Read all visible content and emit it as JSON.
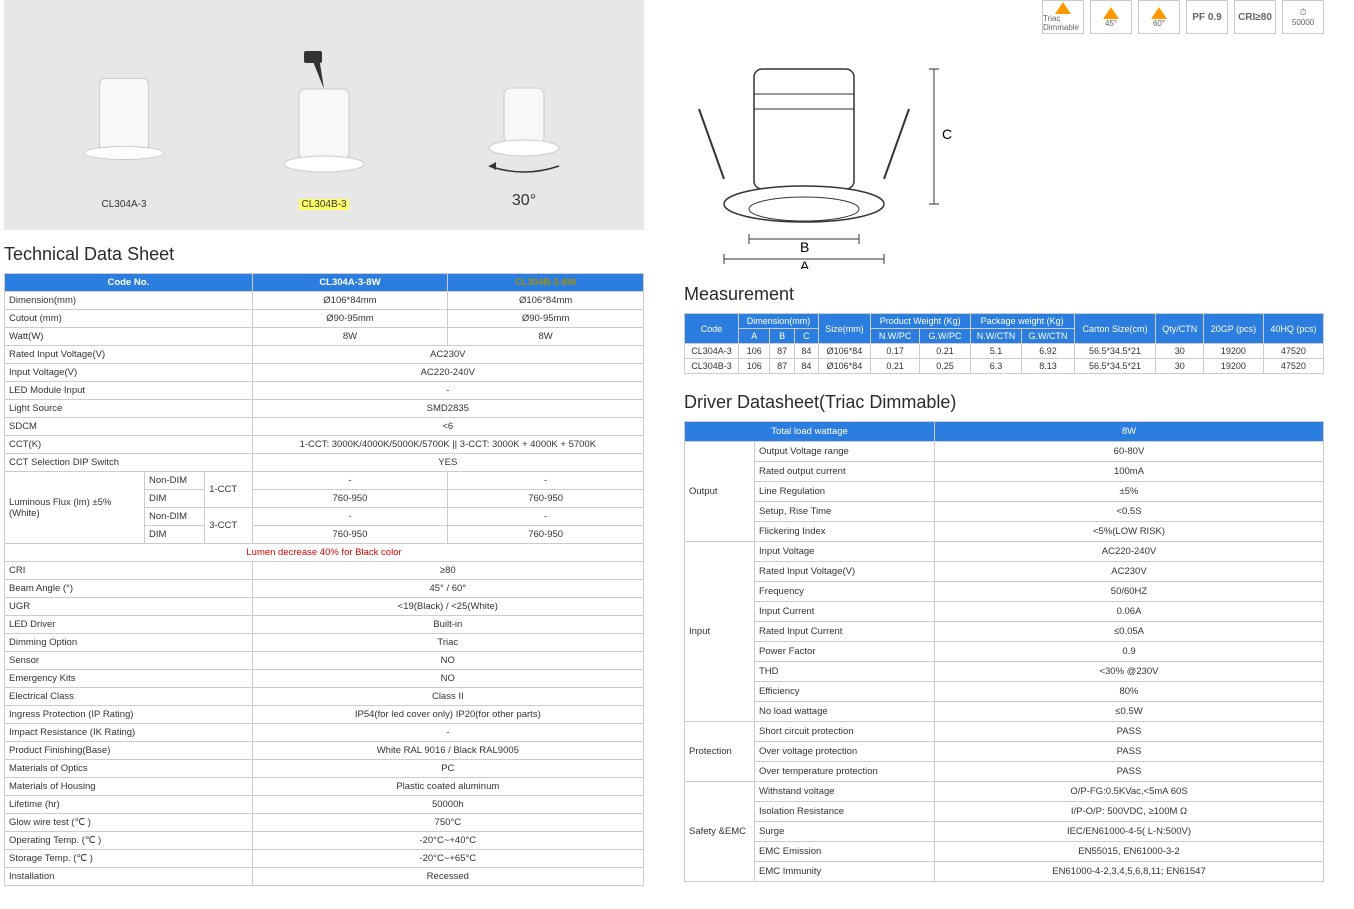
{
  "colors": {
    "header_blue": "#2b7de0",
    "highlight_yellow": "#ffff66",
    "red": "#d00",
    "border": "#cccccc",
    "gallery_bg": "#e7e7e7"
  },
  "gallery": {
    "items": [
      {
        "label": "CL304A-3",
        "highlight": false
      },
      {
        "label": "CL304B-3",
        "highlight": true
      }
    ],
    "tilt": "30°"
  },
  "badges": [
    {
      "text": "Triac Dimmable"
    },
    {
      "text": "45°"
    },
    {
      "text": "60°"
    },
    {
      "text": "PF 0.9"
    },
    {
      "text": "CRI≥80"
    },
    {
      "text": "50000"
    }
  ],
  "tech": {
    "title": "Technical Data Sheet",
    "headers": [
      "Code No.",
      "CL304A-3-8W",
      "CL304B-3-8W"
    ],
    "header_hl_index": 2,
    "rows_two": [
      {
        "label": "Dimension(mm)",
        "a": "Ø106*84mm",
        "b": "Ø106*84mm"
      },
      {
        "label": "Cutout (mm)",
        "a": "Ø90-95mm",
        "b": "Ø90-95mm"
      },
      {
        "label": "Watt(W)",
        "a": "8W",
        "b": "8W"
      }
    ],
    "rows_span": [
      {
        "label": "Rated Input Voltage(V)",
        "val": "AC230V"
      },
      {
        "label": "Input Voltage(V)",
        "val": "AC220-240V"
      },
      {
        "label": "LED Module Input",
        "val": "-"
      },
      {
        "label": "Light Source",
        "val": "SMD2835"
      },
      {
        "label": "SDCM",
        "val": "<6"
      },
      {
        "label": "CCT(K)",
        "val": "1-CCT: 3000K/4000K/5000K/5700K  ||  3-CCT: 3000K + 4000K + 5700K"
      },
      {
        "label": "CCT Selection DIP Switch",
        "val": "YES"
      }
    ],
    "flux": {
      "label": "Luminous Flux (lm) ±5% (White)",
      "groups": [
        {
          "sub": "Non-DIM",
          "cct": "1-CCT",
          "a": "-",
          "b": "-"
        },
        {
          "sub": "DIM",
          "cct": "",
          "a": "760-950",
          "b": "760-950"
        },
        {
          "sub": "Non-DIM",
          "cct": "3-CCT",
          "a": "-",
          "b": "-"
        },
        {
          "sub": "DIM",
          "cct": "",
          "a": "760-950",
          "b": "760-950"
        }
      ],
      "note": "Lumen decrease 40% for Black color"
    },
    "rows_span2": [
      {
        "label": "CRI",
        "val": "≥80"
      },
      {
        "label": "Beam Angle (°)",
        "val": "45° / 60°"
      },
      {
        "label": "UGR",
        "val": "<19(Black) / <25(White)"
      },
      {
        "label": "LED Driver",
        "val": "Built-in"
      },
      {
        "label": "Dimming  Option",
        "val": "Triac"
      },
      {
        "label": "Sensor",
        "val": "NO"
      },
      {
        "label": "Emergency Kits",
        "val": "NO"
      },
      {
        "label": "Electrical Class",
        "val": "Class II"
      },
      {
        "label": "Ingress Protection (IP Rating)",
        "val": "IP54(for led cover only)   IP20(for other parts)"
      },
      {
        "label": "Impact Resistance (IK Rating)",
        "val": "-"
      },
      {
        "label": "Product Finishing(Base)",
        "val": "White RAL 9016  /  Black RAL9005"
      },
      {
        "label": "Materials of Optics",
        "val": "PC"
      },
      {
        "label": "Materials of Housing",
        "val": "Plastic coated aluminum"
      },
      {
        "label": "Lifetime (hr)",
        "val": "50000h"
      },
      {
        "label": "Glow wire test (℃ )",
        "val": "750°C"
      },
      {
        "label": "Operating Temp. (℃ )",
        "val": "-20°C~+40°C"
      },
      {
        "label": "Storage Temp. (℃ )",
        "val": "-20°C~+65°C"
      },
      {
        "label": "Installation",
        "val": "Recessed"
      }
    ]
  },
  "measurement": {
    "title": "Measurement",
    "dim_labels": {
      "A": "A",
      "B": "B",
      "C": "C"
    },
    "headers_top": [
      "Code",
      "Dimension(mm)",
      "Size(mm)",
      "Product Weight (Kg)",
      "Package weight (Kg)",
      "Carton Size(cm)",
      "Qty/CTN",
      "20GP (pcs)",
      "40HQ (pcs)"
    ],
    "headers_sub": [
      "A",
      "B",
      "C",
      "N.W/PC",
      "G.W/PC",
      "N.W/CTN",
      "G.W/CTN"
    ],
    "rows": [
      {
        "code": "CL304A-3",
        "A": "106",
        "B": "87",
        "C": "84",
        "size": "Ø106*84",
        "nw": "0.17",
        "gw": "0.21",
        "nwctn": "5.1",
        "gwctn": "6.92",
        "carton": "56.5*34.5*21",
        "qty": "30",
        "gp": "19200",
        "hq": "47520"
      },
      {
        "code": "CL304B-3",
        "A": "106",
        "B": "87",
        "C": "84",
        "size": "Ø106*84",
        "nw": "0.21",
        "gw": "0.25",
        "nwctn": "6.3",
        "gwctn": "8.13",
        "carton": "56.5*34.5*21",
        "qty": "30",
        "gp": "19200",
        "hq": "47520"
      }
    ]
  },
  "driver": {
    "title": "Driver Datasheet(Triac Dimmable)",
    "header": [
      "Total load wattage",
      "8W"
    ],
    "sections": [
      {
        "cat": "Output",
        "rows": [
          {
            "p": "Output Voltage range",
            "v": "60-80V"
          },
          {
            "p": "Rated output current",
            "v": "100mA"
          },
          {
            "p": "Line Regulation",
            "v": "±5%"
          },
          {
            "p": "Setup, Rise Time",
            "v": "<0.5S"
          },
          {
            "p": "Flickering Index",
            "v": "<5%(LOW RISK)"
          }
        ]
      },
      {
        "cat": "Input",
        "rows": [
          {
            "p": "Input Voltage",
            "v": "AC220-240V"
          },
          {
            "p": "Rated Input Voltage(V)",
            "v": "AC230V"
          },
          {
            "p": "Frequency",
            "v": "50/60HZ"
          },
          {
            "p": "Input Current",
            "v": "0.06A"
          },
          {
            "p": "Rated Input Current",
            "v": "≤0.05A"
          },
          {
            "p": "Power Factor",
            "v": "0.9"
          },
          {
            "p": "THD",
            "v": "<30% @230V"
          },
          {
            "p": "Efficiency",
            "v": "80%"
          },
          {
            "p": "No load wattage",
            "v": "≤0.5W"
          }
        ]
      },
      {
        "cat": "Protection",
        "rows": [
          {
            "p": "Short circuit protection",
            "v": "PASS"
          },
          {
            "p": "Over voltage protection",
            "v": "PASS"
          },
          {
            "p": "Over temperature protection",
            "v": "PASS"
          }
        ]
      },
      {
        "cat": "Safety &EMC",
        "rows": [
          {
            "p": "Withstand voltage",
            "v": "O/P-FG:0.5KVac,<5mA 60S"
          },
          {
            "p": "Isolation Resistance",
            "v": "I/P-O/P: 500VDC, ≥100M Ω"
          },
          {
            "p": "Surge",
            "v": "IEC/EN61000-4-5( L-N:500V)"
          },
          {
            "p": "EMC Emission",
            "v": "EN55015, EN61000-3-2"
          },
          {
            "p": "EMC Immunity",
            "v": "EN61000-4-2,3,4,5,6,8,11; EN61547"
          }
        ]
      }
    ]
  }
}
